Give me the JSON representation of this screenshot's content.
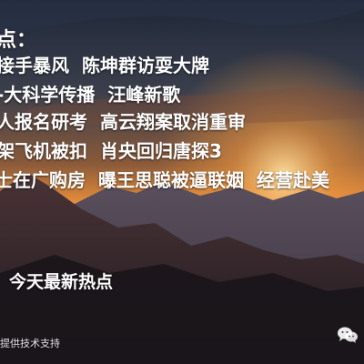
{
  "heading": "点：",
  "headlines": [
    [
      "接手暴风",
      "陈坤群访耍大牌"
    ],
    [
      "-大科学传播",
      "汪峰新歌"
    ],
    [
      "人报名研考",
      "高云翔案取消重审"
    ],
    [
      "架飞机被扣",
      "肖央回归唐探3"
    ],
    [
      "士在广购房",
      "曝王思聪被逼联姻",
      "经营赴美"
    ]
  ],
  "footer_label": "今天最新热点",
  "credit": "提供技术支持",
  "icon_names": [
    "wechat-icon"
  ],
  "colors": {
    "text": "#ffffff",
    "sky_top": "#1f2a3c",
    "sunset_glow": "#f2a24a",
    "mountain": "#2a2126"
  }
}
